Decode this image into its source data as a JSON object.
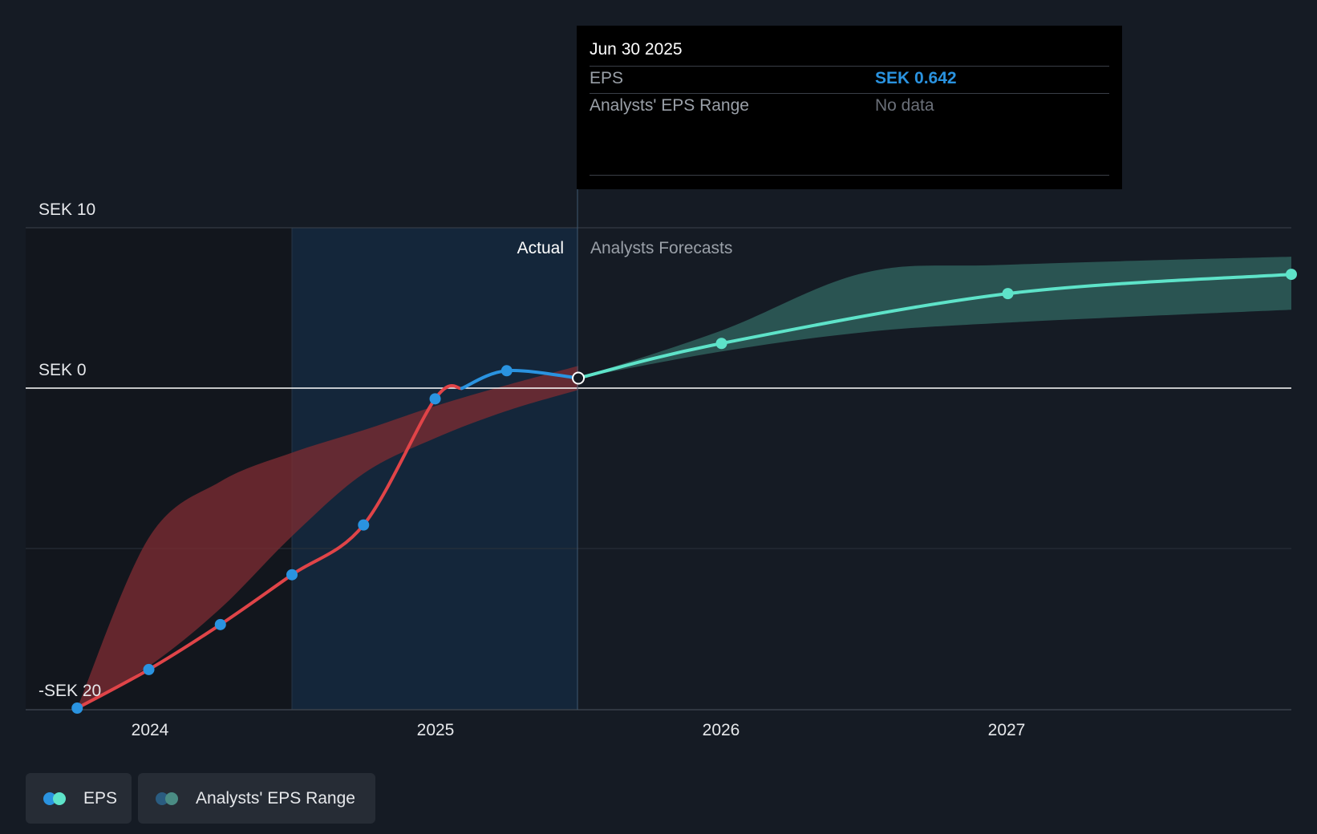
{
  "tooltip": {
    "date": "Jun 30 2025",
    "rows": [
      {
        "label": "EPS",
        "value": "SEK 0.642"
      },
      {
        "label": "Analysts' EPS Range",
        "value": "No data"
      }
    ]
  },
  "labels": {
    "actual": "Actual",
    "forecast": "Analysts Forecasts"
  },
  "legend": [
    {
      "label": "EPS"
    },
    {
      "label": "Analysts' EPS Range"
    }
  ],
  "colors": {
    "background": "#151b24",
    "eps_loss": "#e04448",
    "eps_actual": "#2a93e0",
    "eps_forecast": "#5ee3c9",
    "range_actual": "#7b2b32",
    "range_forecast": "#2e5e5a",
    "tooltip_value": "#2a93e0",
    "tooltip_nodata": "#6b7079"
  },
  "chart_data": {
    "type": "line",
    "y_tick_labels": [
      "SEK 10",
      "SEK 0",
      "-SEK 20"
    ],
    "y_ticks": [
      10,
      0,
      -20
    ],
    "ylim": [
      -20,
      10
    ],
    "x_tick_labels": [
      "2024",
      "2025",
      "2026",
      "2027"
    ],
    "x_ticks": [
      2024,
      2025,
      2026,
      2027
    ],
    "xlim": [
      2023.57,
      2027.99
    ],
    "grid": true,
    "split_x": 2025.5,
    "highlight_start_x": 2024.5,
    "series": [
      {
        "name": "EPS",
        "segment": "actual",
        "x": [
          2023.75,
          2024.0,
          2024.25,
          2024.5,
          2024.75,
          2025.0,
          2025.25,
          2025.5
        ],
        "y": [
          -19.9,
          -17.5,
          -14.7,
          -11.6,
          -8.5,
          -0.65,
          1.1,
          0.642
        ]
      },
      {
        "name": "EPS",
        "segment": "forecast",
        "x": [
          2025.5,
          2026.0,
          2027.0,
          2027.99
        ],
        "y": [
          0.642,
          2.8,
          5.9,
          7.1
        ]
      },
      {
        "name": "Analysts' EPS Range",
        "segment": "actual",
        "x": [
          2023.75,
          2024.0,
          2024.25,
          2024.5,
          2024.75,
          2025.0,
          2025.25,
          2025.5
        ],
        "upper": [
          -19.9,
          -9.3,
          -5.8,
          -4.0,
          -2.6,
          -1.1,
          0.2,
          1.4
        ],
        "lower": [
          -19.9,
          -17.3,
          -13.7,
          -9.2,
          -5.3,
          -3.1,
          -1.4,
          -0.1
        ]
      },
      {
        "name": "Analysts' EPS Range",
        "segment": "forecast",
        "x": [
          2025.5,
          2026.0,
          2026.5,
          2027.0,
          2027.99
        ],
        "upper": [
          0.642,
          3.6,
          7.2,
          7.7,
          8.2
        ],
        "lower": [
          0.642,
          2.3,
          3.5,
          4.1,
          4.9
        ]
      }
    ]
  }
}
